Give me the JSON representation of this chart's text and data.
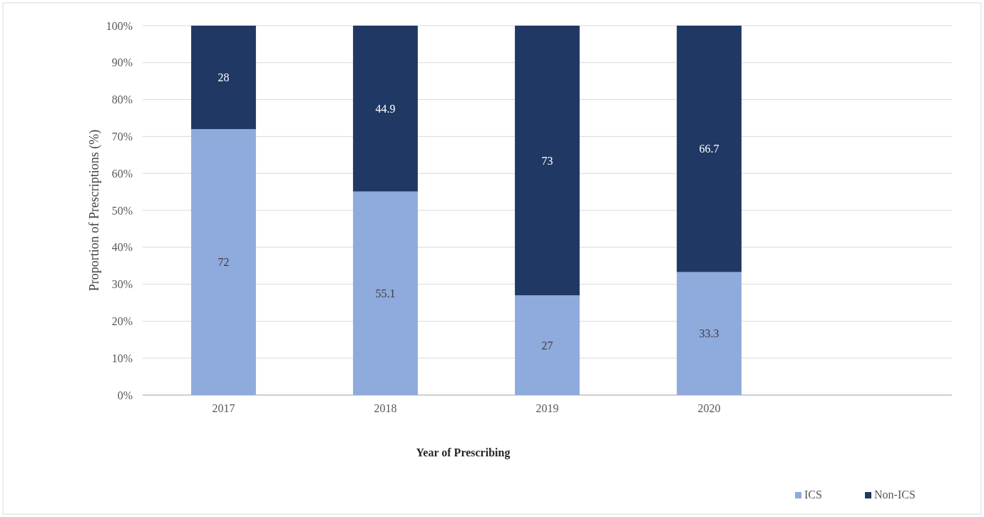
{
  "chart_data": {
    "type": "bar",
    "stacked": true,
    "xlabel": "Year of Prescribing",
    "ylabel": "Proportion of Prescriptions (%)",
    "categories": [
      "2017",
      "2018",
      "2019",
      "2020",
      null
    ],
    "series": [
      {
        "name": "ICS",
        "color": "#8faadc",
        "values": [
          72,
          55.1,
          27,
          33.3,
          null
        ]
      },
      {
        "name": "Non-ICS",
        "color": "#203864",
        "values": [
          28,
          44.9,
          73,
          66.7,
          null
        ]
      }
    ],
    "ylim": [
      0,
      100
    ],
    "yticks": [
      {
        "value": 0,
        "label": "0%"
      },
      {
        "value": 10,
        "label": "10%"
      },
      {
        "value": 20,
        "label": "20%"
      },
      {
        "value": 30,
        "label": "30%"
      },
      {
        "value": 40,
        "label": "40%"
      },
      {
        "value": 50,
        "label": "50%"
      },
      {
        "value": 60,
        "label": "60%"
      },
      {
        "value": 70,
        "label": "70%"
      },
      {
        "value": 80,
        "label": "80%"
      },
      {
        "value": 90,
        "label": "90%"
      },
      {
        "value": 100,
        "label": "100%"
      }
    ],
    "grid": "y",
    "legend": "bottom right",
    "data_labels": true
  }
}
